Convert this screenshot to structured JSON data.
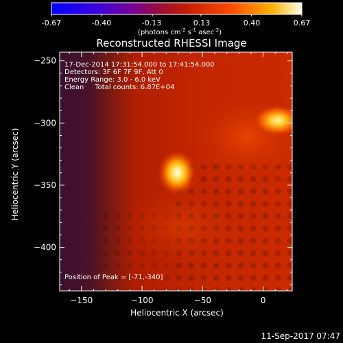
{
  "colorbar": {
    "ticks": [
      "-0.67",
      "-0.40",
      "-0.13",
      "0.13",
      "0.40",
      "0.67"
    ],
    "tick_values": [
      -0.67,
      -0.4,
      -0.13,
      0.13,
      0.4,
      0.67
    ],
    "range": [
      -0.67,
      0.67
    ],
    "units_prefix": "(photons cm",
    "units_exp1": "-2",
    "units_mid": " s",
    "units_exp2": "-1",
    "units_mid2": " asec",
    "units_exp3": "-2",
    "units_suffix": ")",
    "colors": [
      "#0000ff",
      "#5a00c8",
      "#8b0044",
      "#b81400",
      "#ff3a00",
      "#ffa000",
      "#ffffe0"
    ]
  },
  "chart_data": {
    "type": "heatmap",
    "title": "Reconstructed RHESSI Image",
    "xlabel": "Heliocentric X (arcsec)",
    "ylabel": "Heliocentric Y (arcsec)",
    "xlim": [
      -168,
      24
    ],
    "ylim": [
      -435,
      -243
    ],
    "x_ticks": [
      -150,
      -100,
      -50,
      0
    ],
    "x_tick_labels": [
      "−150",
      "−100",
      "−50",
      "0"
    ],
    "y_ticks": [
      -250,
      -300,
      -350,
      -400
    ],
    "y_tick_labels": [
      "−250",
      "−300",
      "−350",
      "−400"
    ],
    "colormap": "red-temperature",
    "sources": [
      {
        "x": -71,
        "y": -340,
        "relative_intensity": 1.0
      },
      {
        "x": 12,
        "y": -298,
        "relative_intensity": 0.85
      }
    ],
    "annotations": {
      "time": "17-Dec-2014 17:31:54.000 to 17:41:54.000",
      "detectors": "Detectors: 3F 6F 7F 9F, Att 0",
      "energy": "Energy Range: 3.0 - 6.0 keV",
      "clean": "Clean     Total counts: 6.87E+04",
      "peak": "Position of Peak = [-71,-340]"
    }
  },
  "footer": {
    "timestamp": "11-Sep-2017 07:47"
  }
}
